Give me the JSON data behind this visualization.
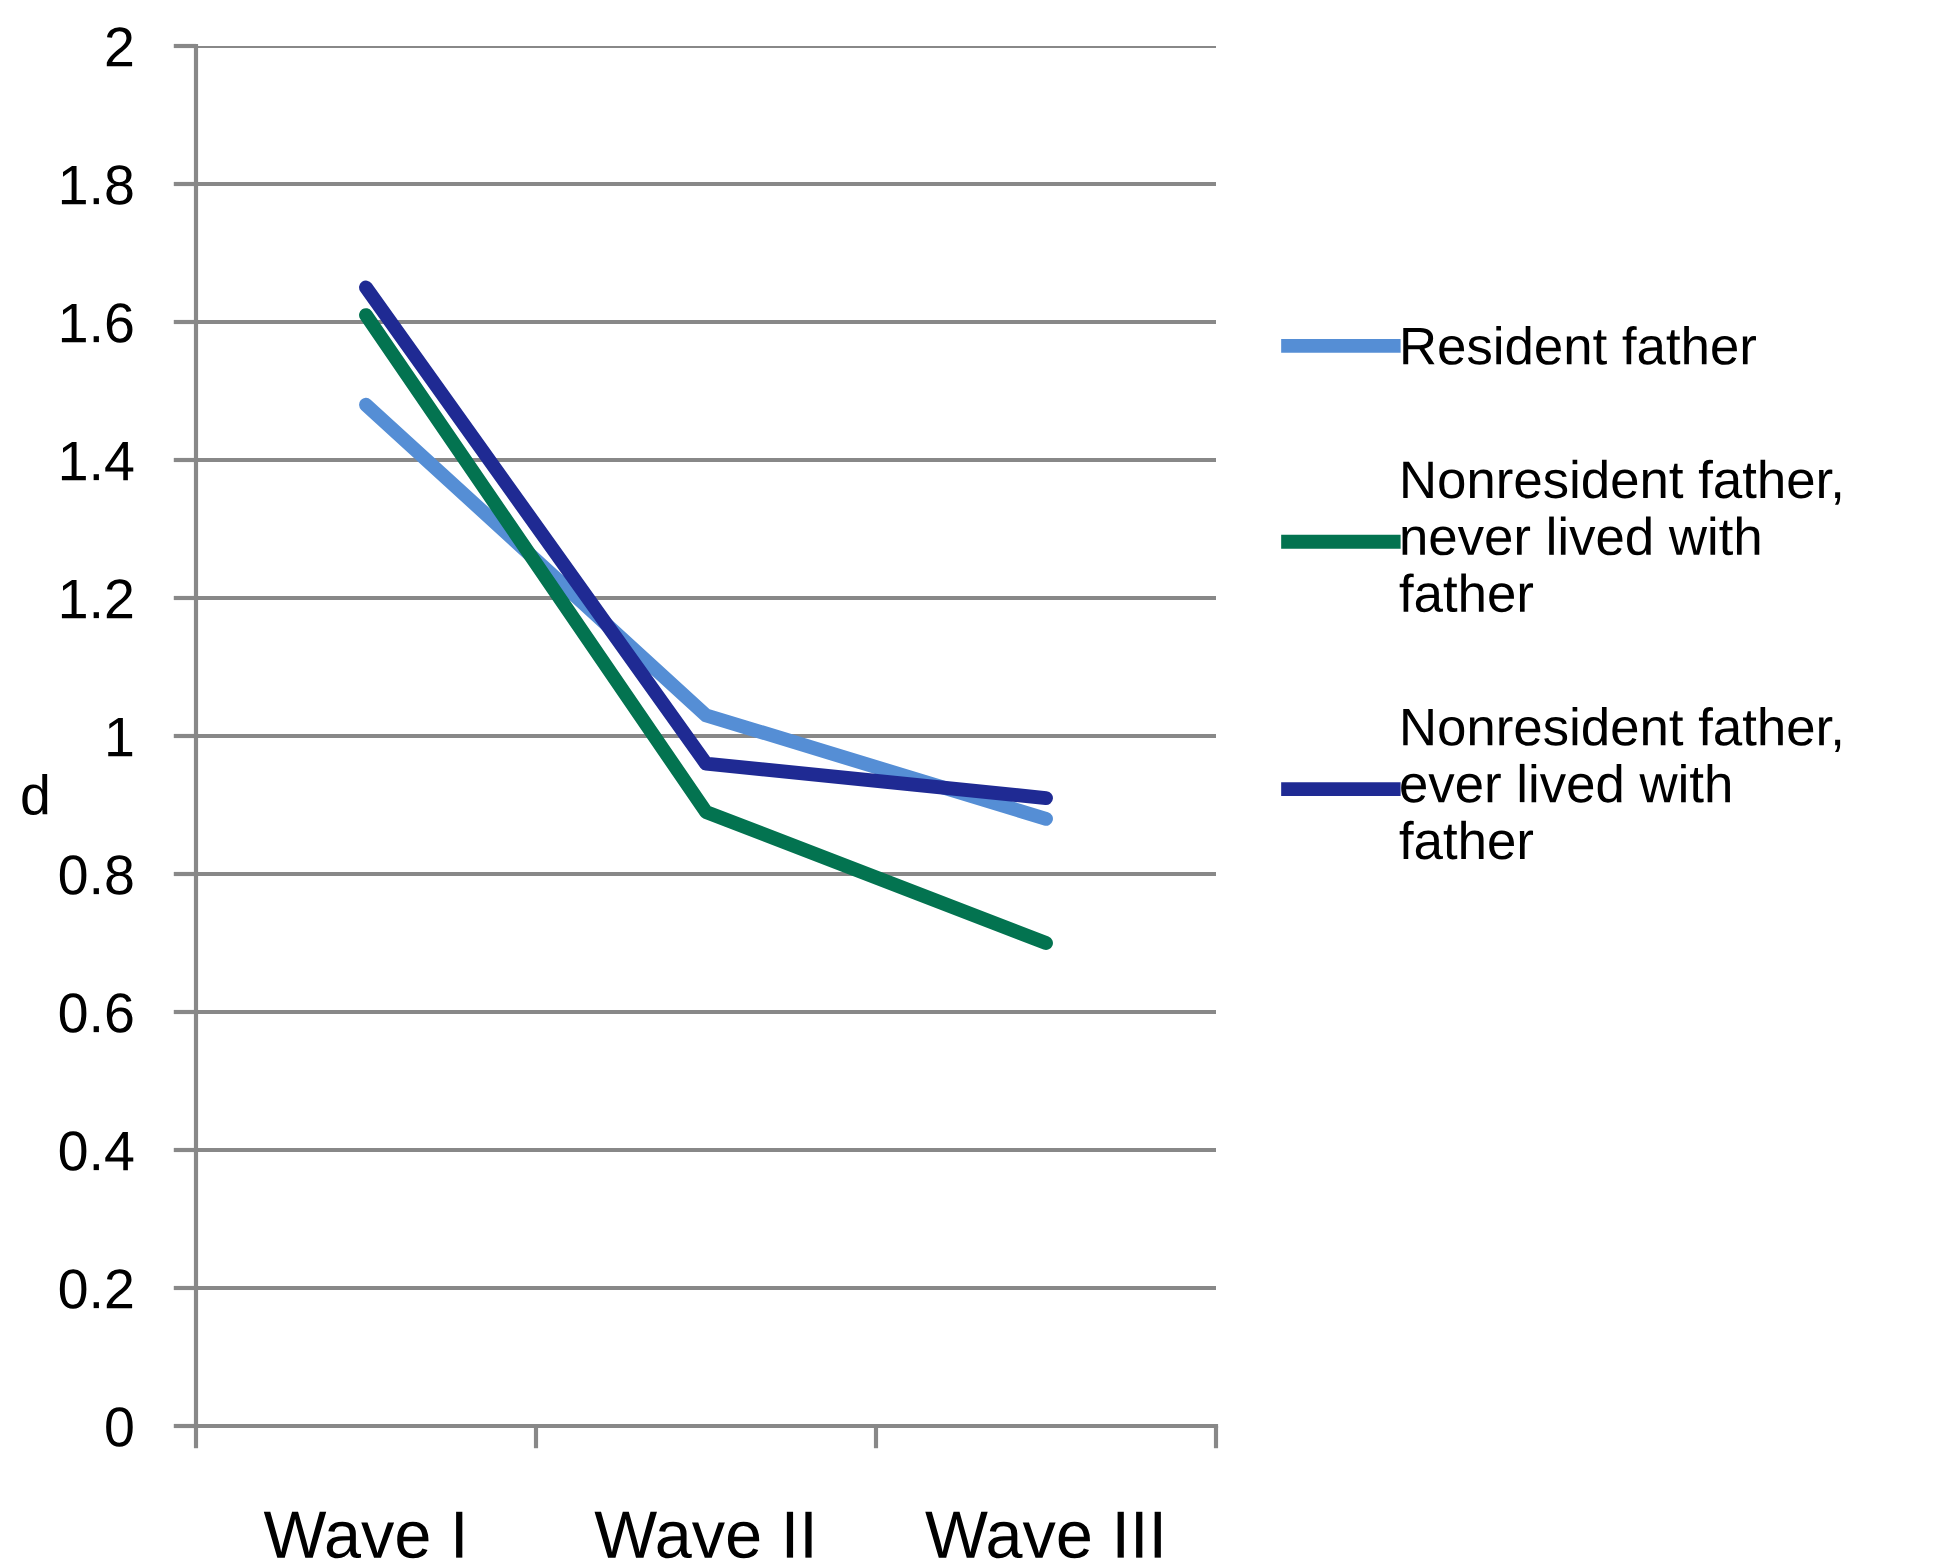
{
  "chart_data": {
    "type": "line",
    "ylabel": "d",
    "categories": [
      "Wave I",
      "Wave II",
      "Wave III"
    ],
    "series": [
      {
        "name": "Resident father",
        "color": "#558ed5",
        "values": [
          1.48,
          1.03,
          0.88
        ]
      },
      {
        "name": "Nonresident father,\nnever lived with\nfather",
        "color": "#037350",
        "values": [
          1.61,
          0.89,
          0.7
        ]
      },
      {
        "name": "Nonresident father,\never lived with\nfather",
        "color": "#1f2a93",
        "values": [
          1.65,
          0.96,
          0.91
        ]
      }
    ],
    "ylim": [
      0,
      2
    ],
    "yticks": [
      {
        "value": 0,
        "label": "0"
      },
      0.2,
      0.4,
      0.6,
      0.8,
      {
        "value": 1,
        "label": "1"
      },
      1.2,
      1.4,
      1.6,
      1.8,
      {
        "value": 2,
        "label": "2"
      }
    ],
    "grid": "y",
    "legend": "right",
    "marker": "none",
    "line_style": "solid"
  }
}
